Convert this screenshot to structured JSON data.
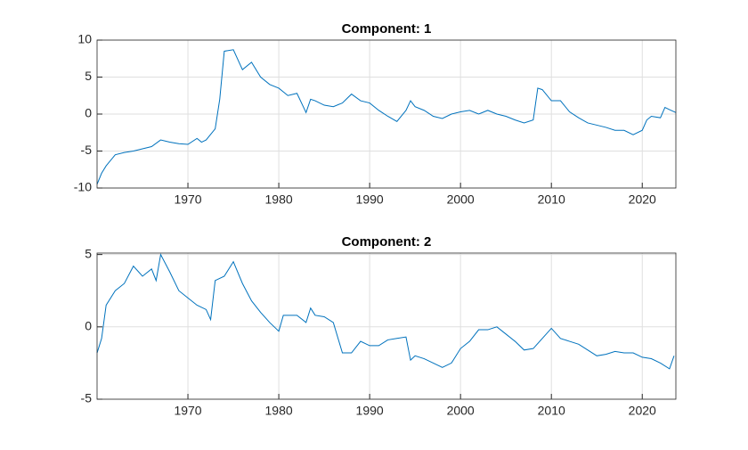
{
  "chart_data": [
    {
      "type": "line",
      "title": "Component: 1",
      "grid": true,
      "x": [
        1960,
        1960.5,
        1961,
        1962,
        1963,
        1964,
        1965,
        1966,
        1967,
        1968,
        1969,
        1970,
        1971,
        1971.5,
        1972,
        1973,
        1973.5,
        1974,
        1975,
        1976,
        1977,
        1978,
        1979,
        1980,
        1981,
        1982,
        1983,
        1983.5,
        1984,
        1985,
        1986,
        1987,
        1988,
        1989,
        1990,
        1991,
        1992,
        1993,
        1994,
        1994.5,
        1995,
        1996,
        1997,
        1998,
        1999,
        2000,
        2001,
        2002,
        2003,
        2004,
        2005,
        2006,
        2007,
        2008,
        2008.5,
        2009,
        2010,
        2011,
        2012,
        2013,
        2014,
        2015,
        2016,
        2017,
        2018,
        2019,
        2020,
        2020.5,
        2021,
        2022,
        2022.5,
        2023,
        2023.7
      ],
      "series": [
        {
          "color": "#0072bd",
          "values": [
            -9.5,
            -8,
            -7,
            -5.5,
            -5.2,
            -5,
            -4.7,
            -4.4,
            -3.5,
            -3.8,
            -4,
            -4.1,
            -3.3,
            -3.8,
            -3.5,
            -2,
            2,
            8.5,
            8.7,
            6,
            7,
            5,
            4,
            3.5,
            2.5,
            2.8,
            0.2,
            2,
            1.8,
            1.2,
            1,
            1.5,
            2.7,
            1.8,
            1.5,
            0.5,
            -0.3,
            -1,
            0.5,
            1.8,
            1,
            0.5,
            -0.3,
            -0.6,
            0,
            0.3,
            0.5,
            0,
            0.5,
            0,
            -0.3,
            -0.8,
            -1.2,
            -0.8,
            3.5,
            3.3,
            1.8,
            1.8,
            0.3,
            -0.5,
            -1.2,
            -1.5,
            -1.8,
            -2.2,
            -2.2,
            -2.8,
            -2.2,
            -0.8,
            -0.3,
            -0.5,
            0.9,
            0.6,
            0.2
          ]
        }
      ],
      "xlim": [
        1960,
        2023.7
      ],
      "xticks": [
        1970,
        1980,
        1990,
        2000,
        2010,
        2020
      ],
      "ylim": [
        -10,
        10
      ],
      "yticks": [
        -10,
        -5,
        0,
        5,
        10
      ]
    },
    {
      "type": "line",
      "title": "Component: 2",
      "grid": true,
      "x": [
        1960,
        1960.5,
        1961,
        1962,
        1963,
        1964,
        1965,
        1966,
        1966.5,
        1967,
        1968,
        1969,
        1970,
        1971,
        1972,
        1972.5,
        1973,
        1974,
        1975,
        1976,
        1977,
        1978,
        1979,
        1980,
        1980.5,
        1982,
        1983,
        1983.5,
        1984,
        1985,
        1986,
        1987,
        1988,
        1989,
        1990,
        1991,
        1992,
        1993,
        1994,
        1994.5,
        1995,
        1996,
        1997,
        1998,
        1999,
        2000,
        2001,
        2002,
        2003,
        2004,
        2005,
        2006,
        2007,
        2008,
        2009,
        2010,
        2011,
        2012,
        2013,
        2014,
        2015,
        2016,
        2017,
        2018,
        2019,
        2020,
        2021,
        2022,
        2023,
        2023.5
      ],
      "series": [
        {
          "color": "#0072bd",
          "values": [
            -1.8,
            -0.8,
            1.5,
            2.5,
            3,
            4.2,
            3.5,
            4,
            3.2,
            5,
            3.8,
            2.5,
            2,
            1.5,
            1.2,
            0.5,
            3.2,
            3.5,
            4.5,
            3,
            1.8,
            1,
            0.3,
            -0.3,
            0.8,
            0.8,
            0.3,
            1.3,
            0.8,
            0.7,
            0.3,
            -1.8,
            -1.8,
            -1,
            -1.3,
            -1.3,
            -0.9,
            -0.8,
            -0.7,
            -2.3,
            -2,
            -2.2,
            -2.5,
            -2.8,
            -2.5,
            -1.5,
            -1,
            -0.2,
            -0.2,
            0,
            -0.5,
            -1,
            -1.6,
            -1.5,
            -0.8,
            -0.1,
            -0.8,
            -1,
            -1.2,
            -1.6,
            -2,
            -1.9,
            -1.7,
            -1.8,
            -1.8,
            -2.1,
            -2.2,
            -2.5,
            -2.9,
            -2
          ]
        }
      ],
      "xlim": [
        1960,
        2023.7
      ],
      "xticks": [
        1970,
        1980,
        1990,
        2000,
        2010,
        2020
      ],
      "ylim": [
        -5,
        5.1
      ],
      "yticks": [
        -5,
        0,
        5
      ]
    }
  ]
}
